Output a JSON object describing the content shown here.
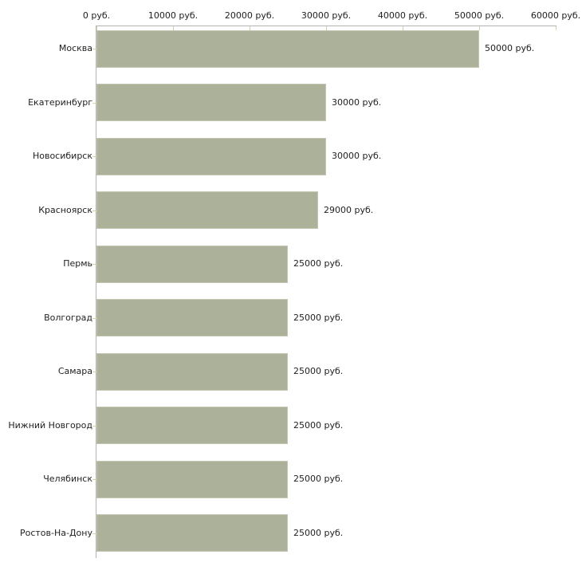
{
  "chart_data": {
    "type": "bar",
    "orientation": "horizontal",
    "title": "",
    "categories": [
      "Москва",
      "Екатеринбург",
      "Новосибирск",
      "Красноярск",
      "Пермь",
      "Волгоград",
      "Самара",
      "Нижний Новгород",
      "Челябинск",
      "Ростов-На-Дону"
    ],
    "values": [
      50000,
      30000,
      30000,
      29000,
      25000,
      25000,
      25000,
      25000,
      25000,
      25000
    ],
    "value_labels": [
      "50000 руб.",
      "30000 руб.",
      "30000 руб.",
      "29000 руб.",
      "25000 руб.",
      "25000 руб.",
      "25000 руб.",
      "25000 руб.",
      "25000 руб.",
      "25000 руб."
    ],
    "x_axis": {
      "position": "top",
      "min": 0,
      "max": 60000,
      "tick_values": [
        0,
        10000,
        20000,
        30000,
        40000,
        50000,
        60000
      ],
      "tick_labels": [
        "0 руб.",
        "10000 руб.",
        "20000 руб.",
        "30000 руб.",
        "40000 руб.",
        "50000 руб.",
        "60000 руб."
      ]
    },
    "ylabel": "",
    "xlabel": "",
    "legend": "none",
    "grid": "off",
    "colors": {
      "bar_fill": "#acb299",
      "bar_border": "#c3c7b2",
      "axis_line": "#b3b3b3",
      "tick_mark": "#d2d2ab",
      "text": "#1f1f1f",
      "background": "#ffffff"
    }
  }
}
